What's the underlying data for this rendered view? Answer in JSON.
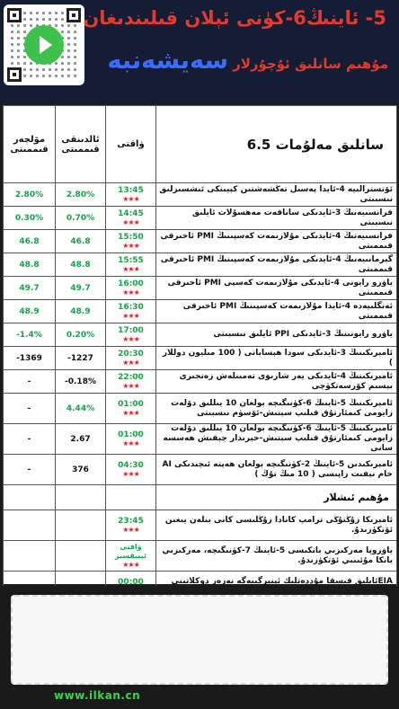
{
  "header": {
    "title_line1": "5- ئاينىڭ6-كۈنى ئېلان قىلىندىغان",
    "title_line2_red": "مۇھىم سانلىق ئۇچۇرلار",
    "title_line2_blue": "سەيشەنبە"
  },
  "table": {
    "col_predicted": "مۆلچەر قىممىتى",
    "col_previous": "ئالدىنقى قىممىتى",
    "col_time": "ۋاقتى",
    "col_main": "سانلىق مەلۇمات    6.5",
    "rows": [
      {
        "pred": "2.80%",
        "prev": "2.80%",
        "time": "13:45",
        "stars": "★★★",
        "desc": "ئۆتسترالىيە 4-ئايدا پەسىل تەڭشەشتىن كېيىنكى ئىشسىزلىق نىسبىتى",
        "pred_color": "green",
        "prev_color": "green"
      },
      {
        "pred": "0.30%",
        "prev": "0.70%",
        "time": "14:45",
        "stars": "★★★",
        "desc": "فرانسىيەنىڭ 3-ئايدىكى ساناقەت مەھسۇلات ئايلىق نىسبىتى",
        "pred_color": "green",
        "prev_color": "green"
      },
      {
        "pred": "46.8",
        "prev": "46.8",
        "time": "15:50",
        "stars": "★★★",
        "desc": "فرانسىيەنىڭ 4-ئايدىكى مۇلازىمەت كەسپىنىڭ PMI ئاخىرقى قىممىتى",
        "pred_color": "green",
        "prev_color": "green"
      },
      {
        "pred": "48.8",
        "prev": "48.8",
        "time": "15:55",
        "stars": "★★★",
        "desc": "گېرمانىيەنىڭ 4-ئايدىكى مۇلازىمەت كەسپىنىڭ PMI ئاخىرقى قىممىتى",
        "pred_color": "green",
        "prev_color": "green"
      },
      {
        "pred": "49.7",
        "prev": "49.7",
        "time": "16:00",
        "stars": "★★★",
        "desc": "ياۋرو رايونى 4-ئايدىكى مۇلازىمەت كەسپى PMI ئاخىرقى قىممىتى",
        "pred_color": "green",
        "prev_color": "green"
      },
      {
        "pred": "48.9",
        "prev": "48.9",
        "time": "16:30",
        "stars": "★★★",
        "desc": "ئەنگلىيەدە 4-ئايدا مۇلازىمەت كەسپىنىڭ PMI ئاخىرقى قىممىتى",
        "pred_color": "green",
        "prev_color": "green"
      },
      {
        "pred": "-1.4%",
        "prev": "0.20%",
        "time": "17:00",
        "stars": "★★★",
        "desc": "ياۋرو رايونىنىڭ 3-ئايدىكى PPI ئايلىق نىسبىتى",
        "pred_color": "green",
        "prev_color": "green"
      },
      {
        "pred": "-1369",
        "prev": "-1227",
        "time": "20:30",
        "stars": "★★★",
        "desc": "ئامېرىكىنىڭ 3-ئايدىكى سودا ھېساباتى ( 100 مىليون دوللار )",
        "pred_color": "black",
        "prev_color": "black"
      },
      {
        "pred": "-",
        "prev": "-0.18%",
        "time": "22:00",
        "stars": "★★★",
        "desc": "ئامېرىكىنىڭ 4-ئايدىكى يەر شارىۋى تەمىنلەش زەنجىرى بېسىم كۆرسەتكۈچى",
        "pred_color": "black",
        "prev_color": "black",
        "tall": false
      },
      {
        "pred": "-",
        "prev": "4.44%",
        "time": "01:00",
        "stars": "★★★",
        "desc": "ئامېرىكىنىڭ 5-ئاينىڭ 6-كۈنىگىچە بولغان 10 يىللىق دۆلەت زايومى كىمئارتۇق قىلىپ سېتىش-ئۆسۈم نىسبىتى",
        "pred_color": "black",
        "prev_color": "green",
        "tall": true
      },
      {
        "pred": "-",
        "prev": "2.67",
        "time": "01:00",
        "stars": "★★★",
        "desc": "ئامېرىكىنىڭ 5-ئاينىڭ 6-كۈنىگىچە بولغان 10 يىللىق دۆلەت زايومى كىمئارتۇق قىلىپ سېتىش-خېرىدار چېقىش ھەسسە سانى",
        "pred_color": "black",
        "prev_color": "black",
        "tall": true
      },
      {
        "pred": "-",
        "prev": "376",
        "time": "04:30",
        "stars": "★★★",
        "desc": "ئامېرىكىدىن 5-ئاينىڭ 2-كۈنىگىچە بولغان ھەپتە ئىچىدىكى AI خام نېفىت زاپىسى ( 10 مىڭ تۇڭ )",
        "pred_color": "black",
        "prev_color": "black",
        "tall": true
      }
    ],
    "section_title": "مۇھىم ئىشلار",
    "events": [
      {
        "time": "23:45",
        "stars": "★★★",
        "note": "",
        "desc": "ئامېرىكا زۇڭتۇڭى ترامپ كانادا زۇڭلىسى كانى بىلەن يىغىن ئۆتكۈزىدۇ."
      },
      {
        "time": "",
        "stars": "★★★",
        "note": "ۋاقتى ئېنىقسىز",
        "desc": "ياۋروپا مەركىزىي بانكىسى 5-ئاينىڭ 7-كۈنىگىچە، مەركىزىي بانكا مۇئىنىي ئۆتكۈزىدۇ."
      },
      {
        "time": "00:00",
        "stars": "★★★",
        "note": "",
        "desc": "EIAئايلىق قىسقا مۇددەتلىك ئېنېرگىيەگە نەزەر دوكلاتىنى ئېلان قىلىدۇ."
      }
    ]
  },
  "footer": {
    "url": "www.ilkan.cn"
  }
}
